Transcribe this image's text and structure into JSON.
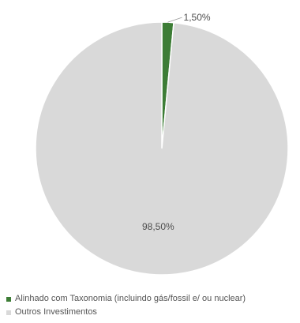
{
  "chart_data": {
    "type": "pie",
    "categories": [
      "Alinhado com Taxonomia (incluindo gás/fossil e/ ou nuclear)",
      "Outros Investimentos"
    ],
    "values": [
      1.5,
      98.5
    ],
    "value_labels": [
      "1,50%",
      "98,50%"
    ],
    "colors": [
      "#3d7d36",
      "#d9d9d9"
    ],
    "legend_position": "bottom-left"
  }
}
